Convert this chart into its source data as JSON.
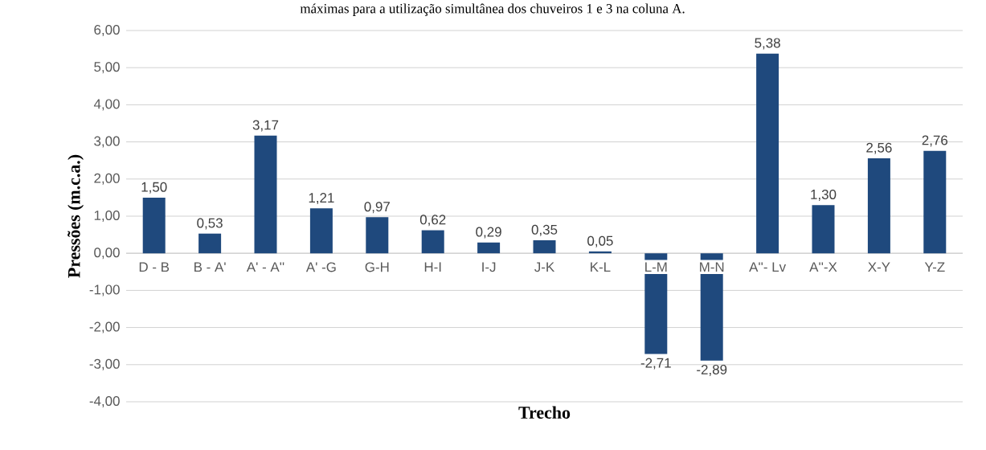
{
  "chart_data": {
    "type": "bar",
    "title": "máximas para a utilização simultânea dos chuveiros 1 e 3 na coluna A.",
    "xlabel": "Trecho",
    "ylabel": "Pressões (m.c.a.)",
    "categories": [
      "D - B",
      "B - A'",
      "A' - A''",
      "A' -G",
      "G-H",
      "H-I",
      "I-J",
      "J-K",
      "K-L",
      "L-M",
      "M-N",
      "A''- Lv",
      "A''-X",
      "X-Y",
      "Y-Z"
    ],
    "values": [
      1.5,
      0.53,
      3.17,
      1.21,
      0.97,
      0.62,
      0.29,
      0.35,
      0.05,
      -2.71,
      -2.89,
      5.38,
      1.3,
      2.56,
      2.76
    ],
    "value_labels": [
      "1,50",
      "0,53",
      "3,17",
      "1,21",
      "0,97",
      "0,62",
      "0,29",
      "0,35",
      "0,05",
      "-2,71",
      "-2,89",
      "5,38",
      "1,30",
      "2,56",
      "2,76"
    ],
    "color": "#1f497d",
    "ylim": [
      -4,
      6
    ],
    "yticks": [
      {
        "value": -4,
        "label": "-4,00"
      },
      {
        "value": -3,
        "label": "-3,00"
      },
      {
        "value": -2,
        "label": "-2,00"
      },
      {
        "value": -1,
        "label": "-1,00"
      },
      {
        "value": 0,
        "label": "0,00"
      },
      {
        "value": 1,
        "label": "1,00"
      },
      {
        "value": 2,
        "label": "2,00"
      },
      {
        "value": 3,
        "label": "3,00"
      },
      {
        "value": 4,
        "label": "4,00"
      },
      {
        "value": 5,
        "label": "5,00"
      },
      {
        "value": 6,
        "label": "6,00"
      }
    ],
    "grid": "y"
  }
}
